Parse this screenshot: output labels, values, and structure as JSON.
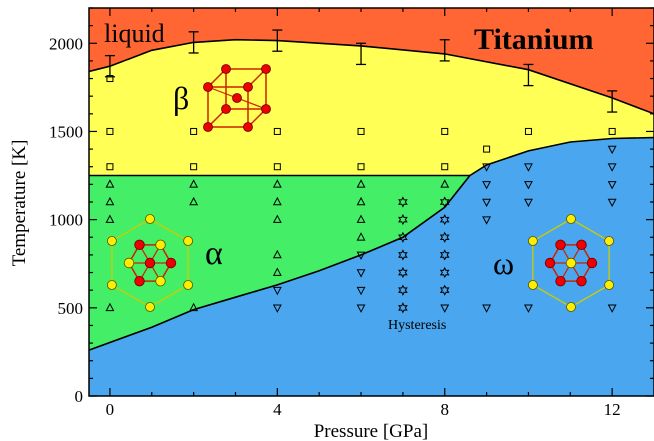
{
  "chart_data": {
    "type": "scatter",
    "title": "Titanium",
    "xlabel": "Pressure [GPa]",
    "ylabel": "Temperature [K]",
    "xlim": [
      -0.5,
      13
    ],
    "ylim": [
      0,
      2200
    ],
    "xticks": [
      "0",
      "4",
      "8",
      "12"
    ],
    "yticks": [
      "0",
      "500",
      "1000",
      "1500",
      "2000"
    ],
    "grid": false,
    "colors": {
      "liquid": "#ff6633",
      "beta": "#ffff55",
      "alpha": "#44ee66",
      "omega": "#4aa6ee",
      "atom_red": "#ee0000",
      "atom_yellow": "#ffee00",
      "bond_red": "#cc2200",
      "bond_yellow": "#cccc00"
    },
    "phase_labels": {
      "liquid": "liquid",
      "beta": "β",
      "alpha": "α",
      "omega": "ω",
      "hysteresis": "Hysteresis"
    },
    "boundaries": {
      "melting": [
        [
          -0.5,
          1840
        ],
        [
          0,
          1870
        ],
        [
          1,
          1960
        ],
        [
          2,
          2005
        ],
        [
          3,
          2020
        ],
        [
          4,
          2015
        ],
        [
          6,
          1985
        ],
        [
          8,
          1940
        ],
        [
          10,
          1850
        ],
        [
          12,
          1690
        ],
        [
          13,
          1600
        ]
      ],
      "beta_alpha": [
        [
          -0.5,
          1250
        ],
        [
          8.6,
          1250
        ]
      ],
      "beta_omega": [
        [
          8.6,
          1250
        ],
        [
          9,
          1310
        ],
        [
          10,
          1390
        ],
        [
          11,
          1440
        ],
        [
          12,
          1460
        ],
        [
          13,
          1465
        ]
      ],
      "alpha_omega": [
        [
          -0.5,
          260
        ],
        [
          1,
          390
        ],
        [
          2,
          490
        ],
        [
          3,
          560
        ],
        [
          4,
          630
        ],
        [
          5,
          710
        ],
        [
          6,
          800
        ],
        [
          7,
          900
        ],
        [
          8,
          1070
        ],
        [
          8.6,
          1250
        ]
      ]
    },
    "melting_errorbars": [
      {
        "x": 0,
        "y": 1870,
        "err": 60
      },
      {
        "x": 2,
        "y": 2005,
        "err": 60
      },
      {
        "x": 4,
        "y": 2015,
        "err": 60
      },
      {
        "x": 6,
        "y": 1940,
        "err": 60
      },
      {
        "x": 8,
        "y": 1960,
        "err": 60
      },
      {
        "x": 10,
        "y": 1820,
        "err": 60
      },
      {
        "x": 12,
        "y": 1670,
        "err": 60
      }
    ],
    "series": [
      {
        "marker": "square",
        "points": [
          [
            0,
            1800
          ],
          [
            0,
            1500
          ],
          [
            0,
            1300
          ],
          [
            2,
            1500
          ],
          [
            2,
            1300
          ],
          [
            4,
            1500
          ],
          [
            4,
            1300
          ],
          [
            6,
            1500
          ],
          [
            6,
            1300
          ],
          [
            8,
            1500
          ],
          [
            8,
            1300
          ],
          [
            9,
            1400
          ],
          [
            10,
            1500
          ],
          [
            12,
            1500
          ]
        ]
      },
      {
        "marker": "triangle-up",
        "points": [
          [
            0,
            1200
          ],
          [
            0,
            1100
          ],
          [
            0,
            1000
          ],
          [
            0,
            500
          ],
          [
            2,
            1200
          ],
          [
            2,
            1100
          ],
          [
            2,
            500
          ],
          [
            4,
            1200
          ],
          [
            4,
            1100
          ],
          [
            4,
            1000
          ],
          [
            4,
            800
          ],
          [
            4,
            700
          ],
          [
            6,
            1200
          ],
          [
            6,
            1100
          ],
          [
            6,
            1000
          ],
          [
            6,
            900
          ],
          [
            8,
            1200
          ]
        ]
      },
      {
        "marker": "triangle-down",
        "points": [
          [
            4,
            600
          ],
          [
            4,
            500
          ],
          [
            6,
            800
          ],
          [
            6,
            700
          ],
          [
            6,
            600
          ],
          [
            6,
            500
          ],
          [
            8,
            500
          ],
          [
            9,
            1300
          ],
          [
            9,
            1200
          ],
          [
            9,
            1100
          ],
          [
            9,
            1000
          ],
          [
            9,
            500
          ],
          [
            10,
            1300
          ],
          [
            10,
            1200
          ],
          [
            10,
            1100
          ],
          [
            10,
            500
          ],
          [
            12,
            1400
          ],
          [
            12,
            1300
          ],
          [
            12,
            1200
          ],
          [
            12,
            1100
          ],
          [
            12,
            500
          ]
        ]
      },
      {
        "marker": "star",
        "points": [
          [
            7,
            1100
          ],
          [
            7,
            1000
          ],
          [
            7,
            900
          ],
          [
            7,
            800
          ],
          [
            7,
            700
          ],
          [
            7,
            600
          ],
          [
            7,
            500
          ],
          [
            8,
            1100
          ],
          [
            8,
            1000
          ],
          [
            8,
            900
          ],
          [
            8,
            800
          ],
          [
            8,
            700
          ],
          [
            8,
            600
          ]
        ]
      }
    ]
  }
}
